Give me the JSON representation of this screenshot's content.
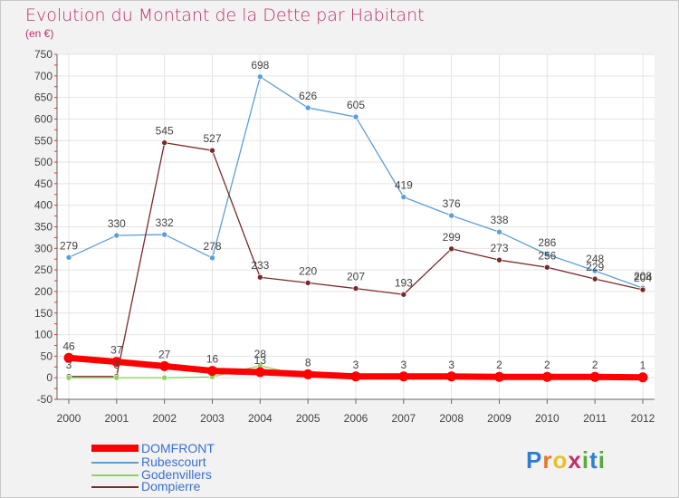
{
  "title": "Evolution du Montant de la Dette par Habitant",
  "subtitle": "(en €)",
  "logo": {
    "text": "Proxiti",
    "letters": [
      {
        "ch": "P",
        "color": "#2f7fd0"
      },
      {
        "ch": "r",
        "color": "#e8762a"
      },
      {
        "ch": "o",
        "color": "#e8c12a"
      },
      {
        "ch": "x",
        "color": "#c0306a"
      },
      {
        "ch": "i",
        "color": "#5aa83a"
      },
      {
        "ch": "t",
        "color": "#2f7fd0"
      },
      {
        "ch": "i",
        "color": "#5aa83a"
      }
    ]
  },
  "chart_data": {
    "type": "line",
    "title": "Evolution du Montant de la Dette par Habitant",
    "subtitle": "(en €)",
    "x": [
      "2000",
      "2001",
      "2002",
      "2003",
      "2004",
      "2005",
      "2006",
      "2007",
      "2008",
      "2009",
      "2010",
      "2011",
      "2012"
    ],
    "ylim": [
      -50,
      750
    ],
    "yticks": [
      -50,
      0,
      50,
      100,
      150,
      200,
      250,
      300,
      350,
      400,
      450,
      500,
      550,
      600,
      650,
      700,
      750
    ],
    "grid": true,
    "legend_position": "bottom-left",
    "series": [
      {
        "name": "DOMFRONT",
        "color": "#ff0000",
        "values": [
          46,
          37,
          27,
          16,
          13,
          8,
          3,
          3,
          3,
          2,
          2,
          2,
          1
        ],
        "labels": [
          "46",
          "37",
          "27",
          "16",
          "13",
          "8",
          "3",
          "3",
          "3",
          "2",
          "2",
          "2",
          "1"
        ]
      },
      {
        "name": "Rubescourt",
        "color": "#5c9fd6",
        "values": [
          279,
          330,
          332,
          278,
          698,
          626,
          605,
          419,
          376,
          338,
          286,
          248,
          208
        ],
        "labels": [
          "279",
          "330",
          "332",
          "278",
          "698",
          "626",
          "605",
          "419",
          "376",
          "338",
          "286",
          "248",
          "208"
        ]
      },
      {
        "name": "Godenvillers",
        "color": "#8fd15f",
        "values": [
          0,
          0,
          0,
          2,
          28,
          2,
          0,
          0,
          0,
          0,
          0,
          0,
          0
        ],
        "labels": [
          "",
          "",
          "",
          "",
          "28",
          "",
          "",
          "",
          "",
          "",
          "",
          "",
          ""
        ]
      },
      {
        "name": "Dompierre",
        "color": "#7a2a2a",
        "values": [
          3,
          3,
          545,
          527,
          233,
          220,
          207,
          193,
          299,
          273,
          256,
          229,
          204
        ],
        "labels": [
          "3",
          "3",
          "545",
          "527",
          "233",
          "220",
          "207",
          "193",
          "299",
          "273",
          "256",
          "229",
          "204"
        ]
      }
    ]
  }
}
